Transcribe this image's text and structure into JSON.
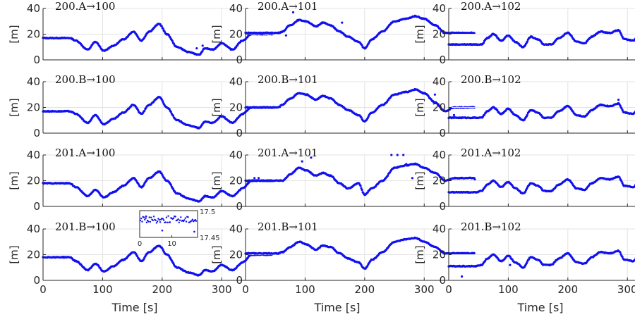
{
  "chart_data": {
    "type": "scatter",
    "layout": "4x3 grid of subplots",
    "grid": true,
    "marker_color": "#1010f0",
    "x_ticks": [
      "0",
      "100",
      "200",
      "300"
    ],
    "xlim": [
      0,
      385
    ],
    "y_ticks": [
      "0",
      "20",
      "40"
    ],
    "ylim": [
      0,
      40
    ],
    "ylabel": "[m]",
    "xlabel": "Time [s]",
    "panels": [
      {
        "title": "200.A→100",
        "profile": "A",
        "x": [
          0,
          45,
          55,
          75,
          88,
          102,
          118,
          135,
          152,
          165,
          178,
          195,
          208,
          225,
          245,
          262,
          272,
          285,
          300,
          318,
          335,
          350,
          385
        ],
        "y": [
          17,
          17,
          15,
          8,
          14,
          7,
          11,
          16,
          22,
          15,
          22,
          28,
          20,
          10,
          6,
          4,
          9,
          8,
          13,
          8,
          15,
          20,
          20
        ],
        "outliers": [
          [
            258,
            9
          ],
          [
            268,
            11
          ]
        ]
      },
      {
        "title": "200.A→101",
        "profile": "B",
        "x": [
          0,
          55,
          62,
          75,
          90,
          102,
          118,
          130,
          142,
          158,
          172,
          190,
          200,
          212,
          230,
          250,
          270,
          285,
          300,
          318,
          335,
          350,
          385
        ],
        "y": [
          21,
          21,
          22,
          27,
          31,
          30,
          26,
          29,
          27,
          22,
          18,
          14,
          9,
          16,
          22,
          30,
          32,
          34,
          32,
          27,
          21,
          21,
          21
        ],
        "outliers": [
          [
            68,
            19
          ],
          [
            80,
            37
          ],
          [
            128,
            29
          ],
          [
            162,
            29
          ]
        ]
      },
      {
        "title": "200.A→102",
        "profile": "C",
        "x": [
          0,
          45,
          55,
          65,
          75,
          88,
          100,
          112,
          125,
          138,
          150,
          160,
          172,
          185,
          200,
          215,
          228,
          240,
          255,
          270,
          285,
          295,
          310,
          320,
          335,
          350,
          360,
          385
        ],
        "y": [
          12,
          12,
          12,
          17,
          20,
          15,
          19,
          14,
          10,
          18,
          16,
          12,
          12,
          17,
          21,
          14,
          13,
          18,
          22,
          21,
          23,
          16,
          15,
          21,
          12,
          9,
          8,
          8
        ],
        "outliers": []
      },
      {
        "title": "200.B→100",
        "profile": "A",
        "x": [
          0,
          45,
          55,
          75,
          88,
          102,
          118,
          135,
          152,
          165,
          178,
          195,
          208,
          225,
          245,
          262,
          272,
          285,
          300,
          318,
          335,
          350,
          385
        ],
        "y": [
          17,
          17,
          15,
          8,
          14,
          7,
          11,
          16,
          22,
          15,
          22,
          28,
          20,
          10,
          6,
          4,
          9,
          8,
          13,
          8,
          15,
          20,
          20
        ],
        "outliers": []
      },
      {
        "title": "200.B→101",
        "profile": "B",
        "x": [
          0,
          55,
          62,
          75,
          90,
          102,
          118,
          130,
          142,
          158,
          172,
          190,
          200,
          212,
          230,
          250,
          270,
          285,
          300,
          318,
          335,
          350,
          385
        ],
        "y": [
          20,
          20,
          22,
          27,
          31,
          30,
          26,
          29,
          27,
          22,
          18,
          14,
          9,
          16,
          22,
          30,
          32,
          34,
          31,
          24,
          17,
          20,
          20
        ],
        "outliers": [
          [
            310,
            27
          ],
          [
            318,
            30
          ],
          [
            350,
            14
          ]
        ]
      },
      {
        "title": "200.B→102",
        "profile": "C",
        "x": [
          0,
          45,
          55,
          65,
          75,
          88,
          100,
          112,
          125,
          138,
          150,
          160,
          172,
          185,
          200,
          215,
          228,
          240,
          255,
          270,
          285,
          295,
          310,
          320,
          335,
          350,
          360,
          385
        ],
        "y": [
          12,
          12,
          12,
          17,
          20,
          15,
          19,
          14,
          10,
          18,
          16,
          12,
          12,
          17,
          21,
          14,
          13,
          18,
          22,
          21,
          23,
          16,
          15,
          21,
          12,
          9,
          8,
          8
        ],
        "outliers": [
          [
            285,
            26
          ]
        ]
      },
      {
        "title": "201.A→100",
        "profile": "A",
        "x": [
          0,
          45,
          55,
          75,
          88,
          102,
          118,
          135,
          152,
          165,
          178,
          195,
          208,
          225,
          245,
          262,
          272,
          285,
          300,
          318,
          335,
          350,
          385
        ],
        "y": [
          18,
          18,
          15,
          8,
          13,
          7,
          11,
          16,
          22,
          15,
          22,
          27,
          20,
          10,
          6,
          4,
          8,
          7,
          12,
          8,
          14,
          20,
          20
        ],
        "outliers": [
          [
            355,
            22
          ],
          [
            362,
            22
          ]
        ]
      },
      {
        "title": "201.A→101",
        "profile": "B",
        "x": [
          0,
          55,
          62,
          75,
          90,
          102,
          118,
          130,
          142,
          158,
          172,
          190,
          200,
          212,
          230,
          250,
          270,
          285,
          300,
          318,
          335,
          350,
          385
        ],
        "y": [
          20,
          20,
          20,
          25,
          30,
          28,
          24,
          26,
          24,
          18,
          14,
          18,
          9,
          14,
          20,
          30,
          32,
          33,
          30,
          26,
          20,
          22,
          22
        ],
        "outliers": [
          [
            95,
            35
          ],
          [
            110,
            38
          ],
          [
            245,
            40
          ],
          [
            255,
            40
          ],
          [
            265,
            40
          ],
          [
            270,
            33
          ],
          [
            280,
            22
          ],
          [
            385,
            21
          ]
        ]
      },
      {
        "title": "201.A→102",
        "profile": "C",
        "x": [
          0,
          45,
          55,
          65,
          75,
          88,
          100,
          112,
          125,
          138,
          150,
          160,
          172,
          185,
          200,
          215,
          228,
          240,
          255,
          270,
          285,
          295,
          310,
          320,
          335,
          350,
          360,
          385
        ],
        "y": [
          11,
          11,
          12,
          17,
          20,
          15,
          19,
          14,
          10,
          18,
          16,
          12,
          12,
          17,
          21,
          14,
          13,
          18,
          22,
          21,
          23,
          16,
          15,
          21,
          12,
          9,
          8,
          8
        ],
        "outliers": [
          [
            375,
            11
          ]
        ]
      },
      {
        "title": "201.B→100",
        "profile": "A",
        "x": [
          0,
          45,
          55,
          75,
          88,
          102,
          118,
          135,
          152,
          165,
          178,
          195,
          208,
          225,
          245,
          262,
          272,
          285,
          300,
          318,
          335,
          350,
          385
        ],
        "y": [
          18,
          18,
          15,
          8,
          13,
          7,
          11,
          16,
          22,
          15,
          22,
          27,
          20,
          10,
          6,
          4,
          8,
          7,
          12,
          8,
          14,
          20,
          20
        ],
        "outliers": []
      },
      {
        "title": "201.B→101",
        "profile": "B",
        "x": [
          0,
          55,
          62,
          75,
          90,
          102,
          118,
          130,
          142,
          158,
          172,
          190,
          200,
          212,
          230,
          250,
          270,
          285,
          300,
          318,
          335,
          350,
          385
        ],
        "y": [
          21,
          21,
          22,
          26,
          30,
          28,
          24,
          27,
          26,
          21,
          17,
          14,
          9,
          16,
          22,
          30,
          32,
          33,
          30,
          26,
          21,
          21,
          21
        ],
        "outliers": []
      },
      {
        "title": "201.B→102",
        "profile": "C",
        "x": [
          0,
          45,
          55,
          65,
          75,
          88,
          100,
          112,
          125,
          138,
          150,
          160,
          172,
          185,
          200,
          215,
          228,
          240,
          255,
          270,
          285,
          295,
          310,
          320,
          335,
          350,
          360,
          385
        ],
        "y": [
          11,
          11,
          12,
          17,
          20,
          15,
          19,
          14,
          10,
          18,
          16,
          12,
          12,
          17,
          21,
          14,
          13,
          18,
          22,
          21,
          23,
          16,
          15,
          21,
          12,
          9,
          8,
          8
        ],
        "outliers": [
          [
            22,
            3
          ],
          [
            103,
            12
          ],
          [
            375,
            7
          ]
        ]
      }
    ],
    "inset": {
      "panel": "201.A→100",
      "x_ticks": [
        "0",
        "10"
      ],
      "xlim": [
        0,
        18
      ],
      "y_ticks": [
        "17.5",
        "17.45"
      ],
      "ylim": [
        17.44,
        17.51
      ],
      "band": [
        17.478,
        17.496
      ],
      "outliers": [
        [
          2,
          17.495
        ],
        [
          7,
          17.458
        ],
        [
          17,
          17.455
        ]
      ]
    }
  }
}
